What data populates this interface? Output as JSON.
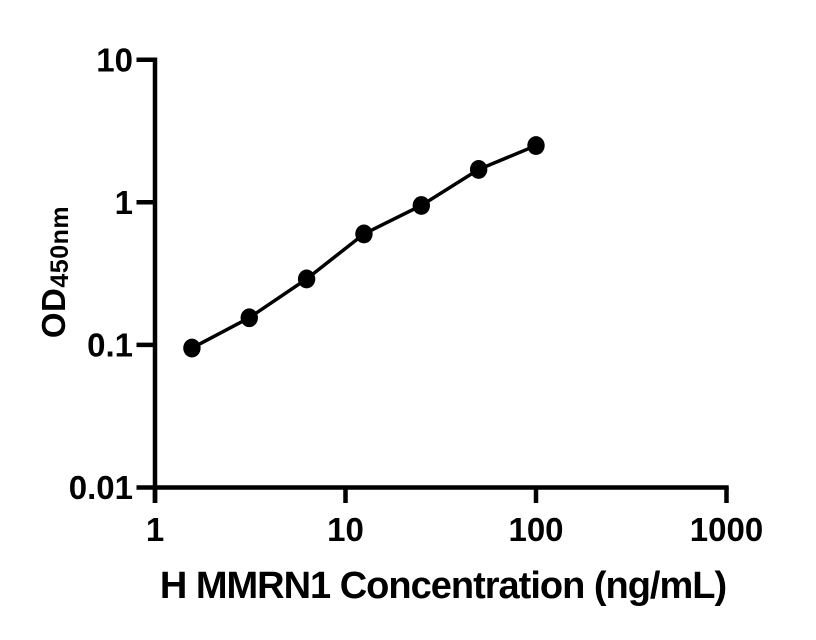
{
  "figure": {
    "background": "#ffffff",
    "axis_color": "#000000",
    "text_color": "#000000"
  },
  "chart_data": {
    "type": "line",
    "title": "",
    "xlabel": "H MMRN1 Concentration (ng/mL)",
    "ylabel": "OD450nm",
    "ylabel_main": "OD",
    "ylabel_sub": "450nm",
    "xscale": "log",
    "yscale": "log",
    "xlim": [
      1,
      1000
    ],
    "ylim": [
      0.01,
      10
    ],
    "x_ticks": [
      1,
      10,
      100,
      1000
    ],
    "x_tick_labels": [
      "1",
      "10",
      "100",
      "1000"
    ],
    "y_ticks": [
      10,
      1,
      0.1,
      0.01
    ],
    "y_tick_labels": [
      "10",
      "1",
      "0.1",
      "0.01"
    ],
    "grid": false,
    "legend": null,
    "series": [
      {
        "marker": "filled-circle",
        "marker_color": "#000000",
        "line_color": "#000000",
        "x": [
          1.5625,
          3.125,
          6.25,
          12.5,
          25,
          50,
          100
        ],
        "y": [
          0.095,
          0.155,
          0.29,
          0.6,
          0.95,
          1.7,
          2.5
        ]
      }
    ]
  }
}
